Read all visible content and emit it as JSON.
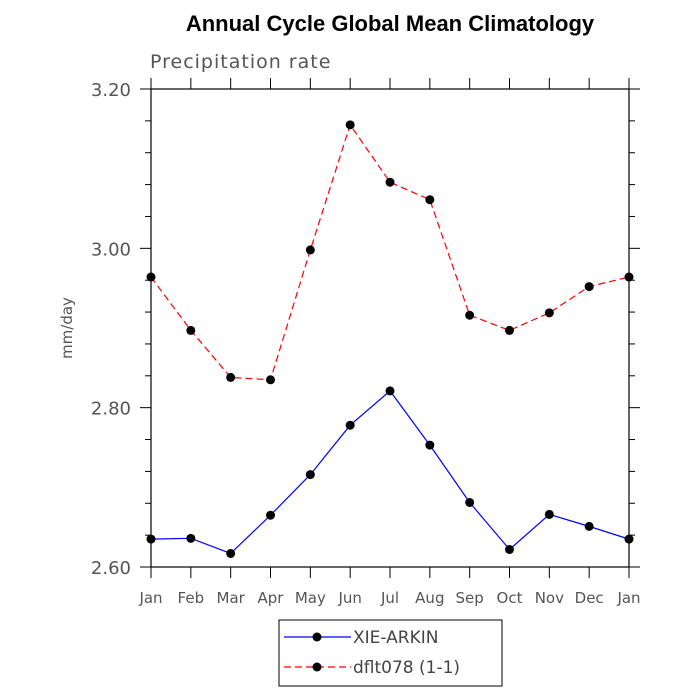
{
  "chart_data": {
    "type": "line",
    "title": "Annual Cycle Global Mean Climatology",
    "subtitle": "Precipitation rate",
    "ylabel": "mm/day",
    "xlabel": "",
    "categories": [
      "Jan",
      "Feb",
      "Mar",
      "Apr",
      "May",
      "Jun",
      "Jul",
      "Aug",
      "Sep",
      "Oct",
      "Nov",
      "Dec",
      "Jan"
    ],
    "ylim": [
      2.6,
      3.2
    ],
    "yticks": [
      "2.60",
      "2.80",
      "3.00",
      "3.20"
    ],
    "grid": false,
    "legend_position": "bottom",
    "series": [
      {
        "name": "XIE-ARKIN",
        "color": "#0000ff",
        "linestyle": "solid",
        "values": [
          2.635,
          2.636,
          2.617,
          2.665,
          2.716,
          2.778,
          2.821,
          2.753,
          2.681,
          2.622,
          2.666,
          2.651,
          2.635
        ]
      },
      {
        "name": "dflt078 (1-1)",
        "color": "#ff0000",
        "linestyle": "dashed",
        "values": [
          2.964,
          2.897,
          2.838,
          2.835,
          2.998,
          3.155,
          3.083,
          3.061,
          2.916,
          2.897,
          2.919,
          2.952,
          2.964
        ]
      }
    ],
    "marker_color": "#000000"
  }
}
